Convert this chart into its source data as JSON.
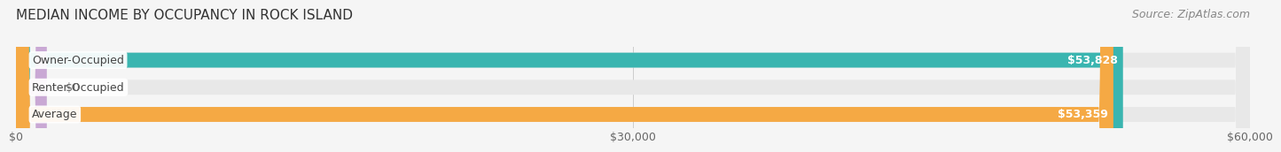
{
  "title": "MEDIAN INCOME BY OCCUPANCY IN ROCK ISLAND",
  "source": "Source: ZipAtlas.com",
  "categories": [
    "Owner-Occupied",
    "Renter-Occupied",
    "Average"
  ],
  "values": [
    53828,
    0,
    53359
  ],
  "bar_colors": [
    "#3ab5b0",
    "#c9a8d4",
    "#f5a944"
  ],
  "value_labels": [
    "$53,828",
    "$0",
    "$53,359"
  ],
  "xlim": [
    0,
    60000
  ],
  "xticks": [
    0,
    30000,
    60000
  ],
  "xtick_labels": [
    "$0",
    "$30,000",
    "$60,000"
  ],
  "background_color": "#f5f5f5",
  "bar_background_color": "#e8e8e8",
  "title_fontsize": 11,
  "source_fontsize": 9,
  "bar_label_fontsize": 9,
  "value_fontsize": 9,
  "tick_fontsize": 9,
  "bar_height": 0.55
}
